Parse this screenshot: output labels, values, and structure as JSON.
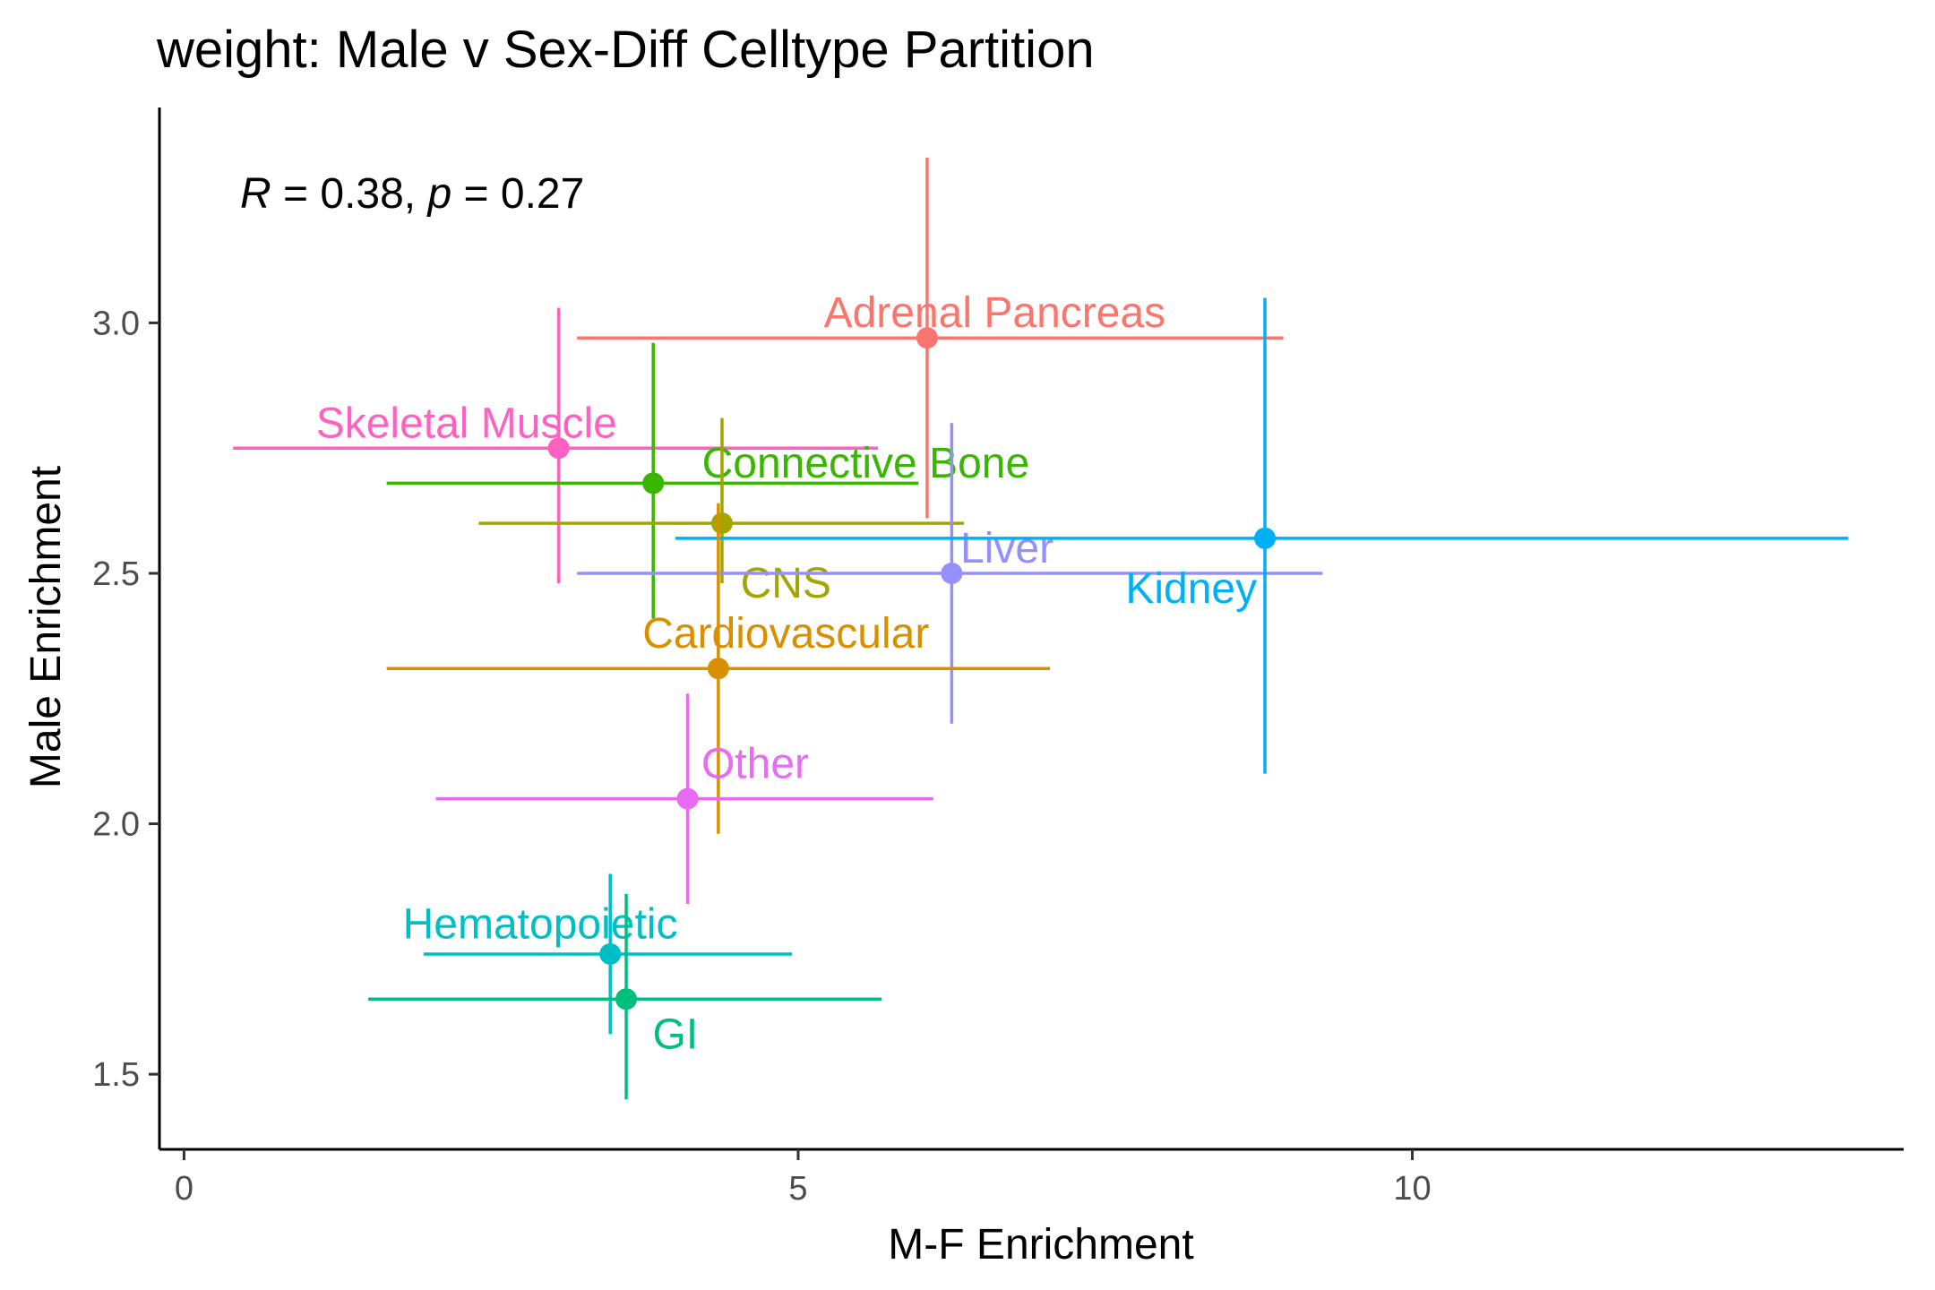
{
  "chart_data": {
    "type": "scatter",
    "title": "weight: Male v Sex-Diff Celltype Partition",
    "xlabel": "M-F Enrichment",
    "ylabel": "Male Enrichment",
    "xlim": [
      -0.2,
      14.0
    ],
    "ylim": [
      1.35,
      3.43
    ],
    "x_ticks": [
      0,
      5,
      10
    ],
    "x_tick_labels": [
      "0",
      "5",
      "10"
    ],
    "y_ticks": [
      1.5,
      2.0,
      2.5,
      3.0
    ],
    "y_tick_labels": [
      "1.5",
      "2.0",
      "2.5",
      "3.0"
    ],
    "grid": false,
    "legend": "none",
    "annotation": {
      "r_symbol": "R",
      "r_text": " = 0.38, ",
      "p_symbol": "p",
      "p_text": " = 0.27"
    },
    "points": [
      {
        "label": "Adrenal Pancreas",
        "color": "#F8766D",
        "x": 6.05,
        "y": 2.97,
        "x_err": [
          3.2,
          8.95
        ],
        "y_err": [
          2.61,
          3.33
        ],
        "label_x": 6.6,
        "label_y": 3.02
      },
      {
        "label": "Skeletal Muscle",
        "color": "#FF61C3",
        "x": 3.05,
        "y": 2.75,
        "x_err": [
          0.4,
          5.65
        ],
        "y_err": [
          2.48,
          3.03
        ],
        "label_x": 2.3,
        "label_y": 2.8
      },
      {
        "label": "Connective Bone",
        "color": "#39B600",
        "x": 3.82,
        "y": 2.68,
        "x_err": [
          1.65,
          5.98
        ],
        "y_err": [
          2.41,
          2.96
        ],
        "label_x": 5.55,
        "label_y": 2.72
      },
      {
        "label": "CNS",
        "color": "#A3A500",
        "x": 4.38,
        "y": 2.6,
        "x_err": [
          2.4,
          6.35
        ],
        "y_err": [
          2.48,
          2.81
        ],
        "label_x": 4.9,
        "label_y": 2.48
      },
      {
        "label": "Liver",
        "color": "#9590FF",
        "x": 6.25,
        "y": 2.5,
        "x_err": [
          3.2,
          9.27
        ],
        "y_err": [
          2.2,
          2.8
        ],
        "label_x": 6.7,
        "label_y": 2.55
      },
      {
        "label": "Kidney",
        "color": "#00B0F6",
        "x": 8.8,
        "y": 2.57,
        "x_err": [
          4.0,
          13.55
        ],
        "y_err": [
          2.1,
          3.05
        ],
        "label_x": 8.2,
        "label_y": 2.47
      },
      {
        "label": "Cardiovascular",
        "color": "#D89000",
        "x": 4.35,
        "y": 2.31,
        "x_err": [
          1.65,
          7.05
        ],
        "y_err": [
          1.98,
          2.64
        ],
        "label_x": 4.9,
        "label_y": 2.38
      },
      {
        "label": "Other",
        "color": "#E76BF3",
        "x": 4.1,
        "y": 2.05,
        "x_err": [
          2.05,
          6.1
        ],
        "y_err": [
          1.84,
          2.26
        ],
        "label_x": 4.65,
        "label_y": 2.12
      },
      {
        "label": "Hematopoietic",
        "color": "#00BFC4",
        "x": 3.47,
        "y": 1.74,
        "x_err": [
          1.95,
          4.95
        ],
        "y_err": [
          1.58,
          1.9
        ],
        "label_x": 2.9,
        "label_y": 1.8
      },
      {
        "label": "GI",
        "color": "#00BF7D",
        "x": 3.6,
        "y": 1.65,
        "x_err": [
          1.5,
          5.68
        ],
        "y_err": [
          1.45,
          1.86
        ],
        "label_x": 4.0,
        "label_y": 1.58
      }
    ]
  }
}
